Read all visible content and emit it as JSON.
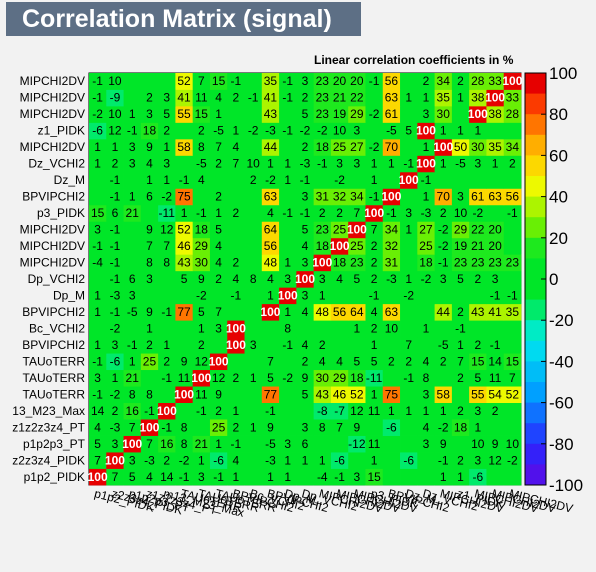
{
  "title": "Correlation Matrix (signal)",
  "subtitle": "Linear correlation coefficients in %",
  "chart_data": {
    "type": "heatmap",
    "variables": [
      "p1p2_PIDK",
      "z2z3z4_PIDK",
      "p1p2p3_PT",
      "z1z2z3z4_PT",
      "m13_M23_Max",
      "TAUoTERR",
      "TAUoTERR",
      "TAUoTERR",
      "BPVIPCHI2",
      "Bc_VCHI2",
      "BPVIPCHI2",
      "Dp_M",
      "Dp_VCHI2",
      "MIPCHI2DV",
      "MIPCHI2DV",
      "MIPCHI2DV",
      "p3_PIDK",
      "BPVIPCHI2",
      "Dz_M",
      "Dz_VCHI2",
      "MIPCHI2DV",
      "z1_PIDK",
      "MIPCHI2DV",
      "MIPCHI2DV",
      "MIPCHI2DV"
    ],
    "y_tick_labels": [
      "p1p2_PIDK",
      "z2z3z4_PIDK",
      "p1p2p3_PT",
      "z1z2z3z4_PT",
      "13_M23_Max",
      "TAUoTERR",
      "TAUoTERR",
      "TAUoTERR",
      "BPVIPCHI2",
      "Bc_VCHI2",
      "BPVIPCHI2",
      "Dp_M",
      "Dp_VCHI2",
      "MIPCHI2DV",
      "MIPCHI2DV",
      "MIPCHI2DV",
      "p3_PIDK",
      "BPVIPCHI2",
      "Dz_M",
      "Dz_VCHI2",
      "MIPCHI2DV",
      "z1_PIDK",
      "MIPCHI2DV",
      "MIPCHI2DV",
      "MIPCHI2DV"
    ],
    "x_tick_labels": [
      "p1p2_PIDK",
      "z2z3z4_PIDK",
      "p1p2p3_PT",
      "z1z2z3z4_PT",
      "m13_M23_Max",
      "TAUoTERR",
      "TAUoTERR",
      "TAUoTERR",
      "BPVIPCHI2",
      "Bc_VCHI2",
      "BPVIPCHI2",
      "Dp_M",
      "Dp_VCHI2",
      "MIPCHI2DV",
      "MIPCHI2DV",
      "MIPCHI2DV",
      "p3_PIDK",
      "BPVIPCHI2",
      "Dz_M",
      "Dz_VCHI2",
      "MIPCHI2DV",
      "z1_PIDK",
      "MIPCHI2DV",
      "MIPCHI2DV",
      "MIPCHI2DV"
    ],
    "values": [
      [
        100,
        7,
        5,
        4,
        14,
        -1,
        3,
        -1,
        1,
        0,
        1,
        1,
        0,
        -4,
        -1,
        3,
        15,
        0,
        0,
        0,
        1,
        1,
        -6,
        0,
        0
      ],
      [
        7,
        100,
        3,
        -3,
        2,
        -2,
        1,
        -6,
        4,
        0,
        -3,
        1,
        1,
        1,
        -6,
        0,
        1,
        0,
        -6,
        0,
        -1,
        2,
        3,
        12,
        -2
      ],
      [
        5,
        3,
        100,
        7,
        16,
        8,
        21,
        1,
        -1,
        0,
        -5,
        3,
        6,
        0,
        0,
        -12,
        11,
        0,
        0,
        3,
        9,
        0,
        10,
        9,
        10
      ],
      [
        4,
        -3,
        7,
        100,
        -1,
        8,
        0,
        25,
        2,
        1,
        9,
        0,
        3,
        8,
        7,
        9,
        0,
        -6,
        0,
        4,
        -2,
        18,
        1,
        0,
        0
      ],
      [
        14,
        2,
        16,
        -1,
        100,
        0,
        -1,
        2,
        1,
        0,
        -1,
        0,
        0,
        -8,
        -7,
        12,
        11,
        1,
        1,
        1,
        1,
        2,
        3,
        2,
        0
      ],
      [
        -1,
        -2,
        8,
        8,
        0,
        100,
        11,
        9,
        0,
        0,
        77,
        0,
        5,
        43,
        46,
        52,
        1,
        75,
        0,
        3,
        58,
        0,
        55,
        54,
        52
      ],
      [
        3,
        1,
        21,
        0,
        -1,
        11,
        100,
        12,
        2,
        1,
        5,
        -2,
        9,
        30,
        29,
        18,
        -11,
        0,
        -1,
        8,
        0,
        2,
        5,
        11,
        7
      ],
      [
        -1,
        -6,
        1,
        25,
        2,
        9,
        12,
        100,
        0,
        0,
        7,
        0,
        2,
        4,
        4,
        5,
        5,
        2,
        2,
        4,
        2,
        7,
        15,
        14,
        15
      ],
      [
        1,
        3,
        -1,
        2,
        1,
        0,
        2,
        0,
        100,
        3,
        0,
        -1,
        4,
        2,
        0,
        0,
        1,
        0,
        7,
        0,
        -5,
        1,
        2,
        -1,
        0
      ],
      [
        0,
        -2,
        0,
        1,
        0,
        0,
        1,
        3,
        100,
        0,
        0,
        8,
        0,
        0,
        0,
        1,
        2,
        10,
        0,
        1,
        0,
        -1,
        0,
        0,
        0
      ],
      [
        1,
        -1,
        -5,
        9,
        -1,
        77,
        5,
        7,
        0,
        0,
        100,
        1,
        4,
        48,
        56,
        64,
        4,
        63,
        0,
        0,
        44,
        2,
        43,
        41,
        35
      ],
      [
        1,
        -3,
        3,
        0,
        0,
        0,
        -2,
        0,
        -1,
        0,
        1,
        100,
        3,
        1,
        0,
        0,
        -1,
        0,
        -2,
        0,
        0,
        0,
        0,
        -1,
        -1
      ],
      [
        0,
        -1,
        6,
        3,
        0,
        5,
        9,
        2,
        4,
        8,
        4,
        3,
        100,
        3,
        4,
        5,
        2,
        -3,
        1,
        -2,
        3,
        5,
        2,
        3,
        0
      ],
      [
        -4,
        -1,
        0,
        8,
        8,
        43,
        30,
        4,
        2,
        0,
        48,
        1,
        3,
        100,
        18,
        23,
        2,
        31,
        0,
        18,
        -1,
        23,
        23,
        23,
        23
      ],
      [
        -1,
        -1,
        0,
        7,
        7,
        46,
        29,
        4,
        0,
        0,
        56,
        0,
        4,
        18,
        100,
        25,
        2,
        32,
        0,
        25,
        -2,
        19,
        21,
        20,
        0
      ],
      [
        3,
        -1,
        0,
        9,
        12,
        52,
        18,
        5,
        0,
        0,
        64,
        0,
        5,
        23,
        25,
        100,
        7,
        34,
        1,
        27,
        -2,
        29,
        22,
        20,
        0
      ],
      [
        15,
        6,
        21,
        0,
        -11,
        1,
        -1,
        1,
        2,
        0,
        4,
        -1,
        -1,
        2,
        2,
        7,
        100,
        -1,
        3,
        -3,
        2,
        10,
        -2,
        0,
        -1
      ],
      [
        0,
        -1,
        1,
        6,
        -2,
        75,
        0,
        2,
        0,
        0,
        63,
        0,
        3,
        31,
        32,
        34,
        -1,
        100,
        0,
        1,
        70,
        3,
        61,
        63,
        56
      ],
      [
        0,
        -1,
        0,
        1,
        1,
        -1,
        4,
        0,
        0,
        2,
        -2,
        1,
        -1,
        0,
        -2,
        0,
        1,
        0,
        100,
        -1,
        0,
        0,
        0,
        0,
        0
      ],
      [
        1,
        2,
        3,
        4,
        3,
        0,
        -5,
        2,
        7,
        10,
        1,
        1,
        -3,
        -1,
        3,
        3,
        1,
        1,
        -1,
        100,
        1,
        -5,
        3,
        1,
        2
      ],
      [
        1,
        1,
        3,
        9,
        1,
        58,
        8,
        7,
        4,
        0,
        44,
        0,
        2,
        18,
        25,
        27,
        -2,
        70,
        0,
        1,
        100,
        50,
        30,
        35,
        34
      ],
      [
        -6,
        12,
        -1,
        18,
        2,
        0,
        2,
        -5,
        1,
        -2,
        -3,
        -1,
        -2,
        -2,
        10,
        3,
        0,
        -5,
        5,
        100,
        1,
        1,
        1,
        0,
        0
      ],
      [
        -2,
        10,
        1,
        3,
        5,
        55,
        15,
        1,
        0,
        0,
        43,
        0,
        5,
        23,
        19,
        29,
        -2,
        61,
        0,
        3,
        30,
        0,
        100,
        38,
        28
      ],
      [
        -1,
        -9,
        0,
        2,
        3,
        41,
        11,
        4,
        2,
        -1,
        41,
        -1,
        2,
        23,
        21,
        22,
        0,
        63,
        1,
        1,
        35,
        1,
        38,
        100,
        33
      ],
      [
        -1,
        10,
        0,
        0,
        0,
        52,
        7,
        15,
        -1,
        0,
        35,
        -1,
        3,
        23,
        20,
        20,
        -1,
        56,
        0,
        2,
        34,
        2,
        28,
        33,
        100
      ]
    ],
    "zlim": [
      -100,
      100
    ],
    "colorbar_ticks": [
      100,
      80,
      60,
      40,
      20,
      0,
      -20,
      -40,
      -60,
      -80,
      -100
    ]
  }
}
